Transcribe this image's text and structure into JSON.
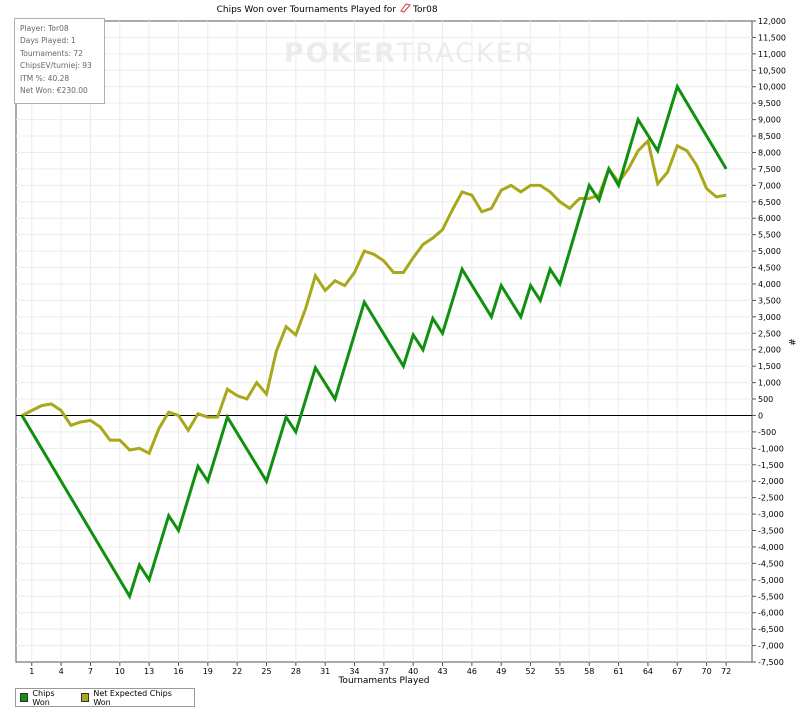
{
  "title": "Chips Won over Tournaments Played for",
  "player_name_in_title": "Tor08",
  "watermark": {
    "part1": "POKER",
    "part2": "TRACKER"
  },
  "info": [
    "Player: Tor08",
    "Days Played: 1",
    "Tournaments: 72",
    "ChipsEV/turniej: 93",
    "ITM %: 40.28",
    "Net Won: €230.00"
  ],
  "chart_data": {
    "type": "line",
    "xlabel": "Tournaments Played",
    "ylabel": "#",
    "xlim": [
      0,
      73
    ],
    "ylim": [
      -7500,
      12000
    ],
    "x_ticks": [
      1,
      4,
      7,
      10,
      13,
      16,
      19,
      22,
      25,
      28,
      31,
      34,
      37,
      40,
      43,
      46,
      49,
      52,
      55,
      58,
      61,
      64,
      67,
      70,
      72
    ],
    "y_ticks": [
      -7500,
      -7000,
      -6500,
      -6000,
      -5500,
      -5000,
      -4500,
      -4000,
      -3500,
      -3000,
      -2500,
      -2000,
      -1500,
      -1000,
      -500,
      0,
      500,
      1000,
      1500,
      2000,
      2500,
      3000,
      3500,
      4000,
      4500,
      5000,
      5500,
      6000,
      6500,
      7000,
      7500,
      8000,
      8500,
      9000,
      9500,
      10000,
      10500,
      11000,
      11500,
      12000
    ],
    "y_tick_labels": [
      "-7,500",
      "-7,000",
      "-6,500",
      "-6,000",
      "-5,500",
      "-5,000",
      "-4,500",
      "-4,000",
      "-3,500",
      "-3,000",
      "-2,500",
      "-2,000",
      "-1,500",
      "-1,000",
      "-500",
      "0",
      "500",
      "1,000",
      "1,500",
      "2,000",
      "2,500",
      "3,000",
      "3,500",
      "4,000",
      "4,500",
      "5,000",
      "5,500",
      "6,000",
      "6,500",
      "7,000",
      "7,500",
      "8,000",
      "8,500",
      "9,000",
      "9,500",
      "10,000",
      "10,500",
      "11,000",
      "11,500",
      "12,000"
    ],
    "grid": true,
    "legend_position": "bottom-left",
    "series": [
      {
        "name": "Chips Won",
        "color": "#109010",
        "points": [
          [
            0,
            0
          ],
          [
            11,
            -5500
          ],
          [
            12,
            -4550
          ],
          [
            13,
            -5000
          ],
          [
            15,
            -3050
          ],
          [
            16,
            -3500
          ],
          [
            18,
            -1550
          ],
          [
            19,
            -2000
          ],
          [
            21,
            -50
          ],
          [
            25,
            -2000
          ],
          [
            27,
            -50
          ],
          [
            28,
            -500
          ],
          [
            30,
            1450
          ],
          [
            32,
            500
          ],
          [
            35,
            3450
          ],
          [
            39,
            1500
          ],
          [
            40,
            2450
          ],
          [
            41,
            2000
          ],
          [
            42,
            2950
          ],
          [
            43,
            2500
          ],
          [
            45,
            4450
          ],
          [
            48,
            3000
          ],
          [
            49,
            3950
          ],
          [
            51,
            3000
          ],
          [
            52,
            3950
          ],
          [
            53,
            3500
          ],
          [
            54,
            4450
          ],
          [
            55,
            4000
          ],
          [
            58,
            7000
          ],
          [
            59,
            6550
          ],
          [
            60,
            7500
          ],
          [
            61,
            7000
          ],
          [
            63,
            9000
          ],
          [
            65,
            8050
          ],
          [
            67,
            10000
          ],
          [
            72,
            7500
          ]
        ]
      },
      {
        "name": "Net Expected Chips Won",
        "color": "#a8a81a",
        "points": [
          [
            0,
            0
          ],
          [
            1,
            150
          ],
          [
            2,
            300
          ],
          [
            3,
            350
          ],
          [
            4,
            150
          ],
          [
            5,
            -300
          ],
          [
            6,
            -200
          ],
          [
            7,
            -150
          ],
          [
            8,
            -350
          ],
          [
            9,
            -750
          ],
          [
            10,
            -750
          ],
          [
            11,
            -1050
          ],
          [
            12,
            -1000
          ],
          [
            13,
            -1150
          ],
          [
            14,
            -400
          ],
          [
            15,
            100
          ],
          [
            16,
            0
          ],
          [
            17,
            -450
          ],
          [
            18,
            50
          ],
          [
            19,
            -50
          ],
          [
            20,
            -50
          ],
          [
            21,
            800
          ],
          [
            22,
            600
          ],
          [
            23,
            500
          ],
          [
            24,
            1000
          ],
          [
            25,
            650
          ],
          [
            26,
            1950
          ],
          [
            27,
            2700
          ],
          [
            28,
            2450
          ],
          [
            29,
            3250
          ],
          [
            30,
            4250
          ],
          [
            31,
            3800
          ],
          [
            32,
            4100
          ],
          [
            33,
            3950
          ],
          [
            34,
            4350
          ],
          [
            35,
            5000
          ],
          [
            36,
            4900
          ],
          [
            37,
            4700
          ],
          [
            38,
            4350
          ],
          [
            39,
            4350
          ],
          [
            40,
            4800
          ],
          [
            41,
            5200
          ],
          [
            42,
            5400
          ],
          [
            43,
            5650
          ],
          [
            44,
            6250
          ],
          [
            45,
            6800
          ],
          [
            46,
            6700
          ],
          [
            47,
            6200
          ],
          [
            48,
            6300
          ],
          [
            49,
            6850
          ],
          [
            50,
            7000
          ],
          [
            51,
            6800
          ],
          [
            52,
            7000
          ],
          [
            53,
            7000
          ],
          [
            54,
            6800
          ],
          [
            55,
            6500
          ],
          [
            56,
            6300
          ],
          [
            57,
            6600
          ],
          [
            58,
            6600
          ],
          [
            59,
            6700
          ],
          [
            60,
            7500
          ],
          [
            61,
            7100
          ],
          [
            62,
            7500
          ],
          [
            63,
            8050
          ],
          [
            64,
            8350
          ],
          [
            65,
            7050
          ],
          [
            66,
            7400
          ],
          [
            67,
            8200
          ],
          [
            68,
            8050
          ],
          [
            69,
            7600
          ],
          [
            70,
            6900
          ],
          [
            71,
            6650
          ],
          [
            72,
            6700
          ]
        ]
      }
    ]
  }
}
